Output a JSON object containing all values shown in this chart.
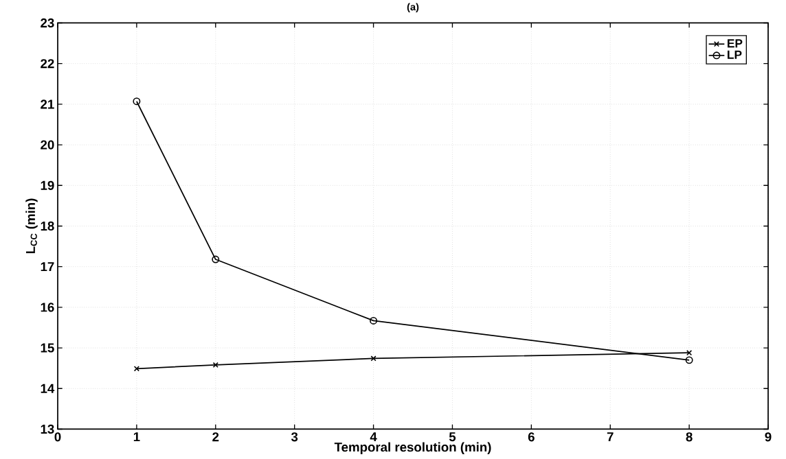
{
  "chart_data": {
    "type": "line",
    "title": "(a)",
    "xlabel": "Temporal resolution (min)",
    "ylabel": "L$_{CC}$ (min)",
    "x": [
      1,
      2,
      4,
      8
    ],
    "series": [
      {
        "name": "EP",
        "color": "#000000",
        "marker": "cross",
        "values": [
          14.49,
          14.58,
          14.74,
          14.88
        ]
      },
      {
        "name": "LP",
        "color": "#000000",
        "marker": "circle",
        "values": [
          21.07,
          17.18,
          15.67,
          14.7
        ]
      }
    ],
    "xlim": [
      0,
      9
    ],
    "xticks": [
      0,
      1,
      2,
      3,
      4,
      5,
      6,
      7,
      8,
      9
    ],
    "ylim": [
      13,
      23
    ],
    "yticks": [
      13,
      14,
      15,
      16,
      17,
      18,
      19,
      20,
      21,
      22,
      23
    ],
    "grid": true,
    "legend": "top right",
    "line_style": "solid"
  }
}
